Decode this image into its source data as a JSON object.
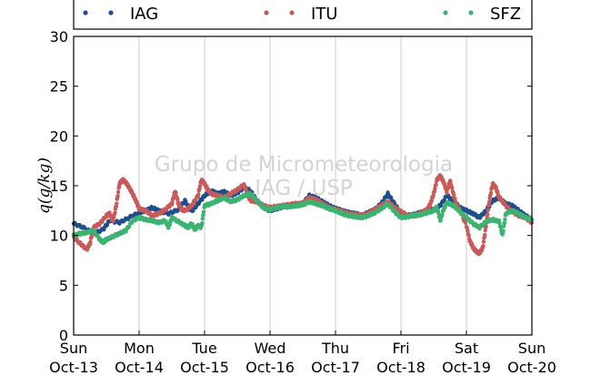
{
  "chart_data": {
    "type": "scatter",
    "title": "",
    "ylabel": "q(g/kg)",
    "xlabel": "",
    "xlim": [
      0,
      7
    ],
    "ylim": [
      0,
      30
    ],
    "yticks": [
      0,
      5,
      10,
      15,
      20,
      25,
      30
    ],
    "grid": "vertical",
    "legend_position": "top",
    "watermark": [
      "Grupo de Micrometeorologia",
      "IAG / USP"
    ],
    "x_ticks": [
      {
        "x": 0,
        "day": "Sun",
        "date": "Oct-13"
      },
      {
        "x": 1,
        "day": "Mon",
        "date": "Oct-14"
      },
      {
        "x": 2,
        "day": "Tue",
        "date": "Oct-15"
      },
      {
        "x": 3,
        "day": "Wed",
        "date": "Oct-16"
      },
      {
        "x": 4,
        "day": "Thu",
        "date": "Oct-17"
      },
      {
        "x": 5,
        "day": "Fri",
        "date": "Oct-18"
      },
      {
        "x": 6,
        "day": "Sat",
        "date": "Oct-19"
      },
      {
        "x": 7,
        "day": "Sun",
        "date": "Oct-20"
      }
    ],
    "series": [
      {
        "name": "IAG",
        "color": "#1f4e8c",
        "points": [
          [
            0,
            11.2
          ],
          [
            0.15,
            10.8
          ],
          [
            0.3,
            10.2
          ],
          [
            0.45,
            10.6
          ],
          [
            0.55,
            11.5
          ],
          [
            0.7,
            11.3
          ],
          [
            0.85,
            11.8
          ],
          [
            1.0,
            12.3
          ],
          [
            1.1,
            12.5
          ],
          [
            1.2,
            12.8
          ],
          [
            1.3,
            12.5
          ],
          [
            1.45,
            12.2
          ],
          [
            1.6,
            12.6
          ],
          [
            1.7,
            13.5
          ],
          [
            1.8,
            12.4
          ],
          [
            1.9,
            13.2
          ],
          [
            2.0,
            14.0
          ],
          [
            2.1,
            14.5
          ],
          [
            2.2,
            14.2
          ],
          [
            2.3,
            14.4
          ],
          [
            2.4,
            14.0
          ],
          [
            2.5,
            14.3
          ],
          [
            2.6,
            14.8
          ],
          [
            2.7,
            14.5
          ],
          [
            2.8,
            13.5
          ],
          [
            2.9,
            12.8
          ],
          [
            3.0,
            12.5
          ],
          [
            3.1,
            12.7
          ],
          [
            3.2,
            12.9
          ],
          [
            3.3,
            13.0
          ],
          [
            3.4,
            13.0
          ],
          [
            3.5,
            13.2
          ],
          [
            3.6,
            14.0
          ],
          [
            3.7,
            13.8
          ],
          [
            3.8,
            13.4
          ],
          [
            3.9,
            13.0
          ],
          [
            4.0,
            12.7
          ],
          [
            4.1,
            12.5
          ],
          [
            4.2,
            12.3
          ],
          [
            4.3,
            12.2
          ],
          [
            4.4,
            12.0
          ],
          [
            4.5,
            12.3
          ],
          [
            4.6,
            12.6
          ],
          [
            4.7,
            13.2
          ],
          [
            4.8,
            14.2
          ],
          [
            4.9,
            13.2
          ],
          [
            5.0,
            12.2
          ],
          [
            5.1,
            12.0
          ],
          [
            5.2,
            12.1
          ],
          [
            5.3,
            12.3
          ],
          [
            5.4,
            12.5
          ],
          [
            5.5,
            12.6
          ],
          [
            5.6,
            13.0
          ],
          [
            5.7,
            14.0
          ],
          [
            5.8,
            13.5
          ],
          [
            5.9,
            12.8
          ],
          [
            6.0,
            12.5
          ],
          [
            6.1,
            12.2
          ],
          [
            6.2,
            11.8
          ],
          [
            6.3,
            12.5
          ],
          [
            6.4,
            13.5
          ],
          [
            6.5,
            13.8
          ],
          [
            6.6,
            13.2
          ],
          [
            6.7,
            13.0
          ],
          [
            6.8,
            12.5
          ],
          [
            6.9,
            12.0
          ],
          [
            7.0,
            11.6
          ]
        ]
      },
      {
        "name": "ITU",
        "color": "#c85a5a",
        "points": [
          [
            0,
            9.8
          ],
          [
            0.1,
            9.2
          ],
          [
            0.2,
            8.6
          ],
          [
            0.25,
            9.2
          ],
          [
            0.3,
            10.8
          ],
          [
            0.4,
            11.2
          ],
          [
            0.5,
            12.0
          ],
          [
            0.55,
            12.2
          ],
          [
            0.6,
            11.4
          ],
          [
            0.65,
            13.0
          ],
          [
            0.7,
            15.2
          ],
          [
            0.75,
            15.6
          ],
          [
            0.8,
            15.3
          ],
          [
            0.85,
            14.8
          ],
          [
            0.9,
            14.2
          ],
          [
            0.95,
            13.5
          ],
          [
            1.0,
            12.7
          ],
          [
            1.1,
            12.5
          ],
          [
            1.2,
            12.0
          ],
          [
            1.3,
            12.2
          ],
          [
            1.4,
            12.6
          ],
          [
            1.5,
            13.2
          ],
          [
            1.55,
            14.5
          ],
          [
            1.6,
            13.2
          ],
          [
            1.65,
            12.6
          ],
          [
            1.7,
            12.5
          ],
          [
            1.8,
            13.0
          ],
          [
            1.9,
            14.0
          ],
          [
            1.95,
            15.6
          ],
          [
            2.0,
            15.2
          ],
          [
            2.05,
            14.6
          ],
          [
            2.1,
            14.2
          ],
          [
            2.2,
            14.0
          ],
          [
            2.3,
            13.8
          ],
          [
            2.4,
            14.2
          ],
          [
            2.5,
            14.6
          ],
          [
            2.6,
            15.1
          ],
          [
            2.65,
            14.2
          ],
          [
            2.7,
            13.5
          ],
          [
            2.8,
            13.4
          ],
          [
            2.9,
            13.0
          ],
          [
            3.0,
            12.8
          ],
          [
            3.1,
            12.9
          ],
          [
            3.2,
            13.0
          ],
          [
            3.3,
            13.1
          ],
          [
            3.4,
            13.2
          ],
          [
            3.5,
            13.2
          ],
          [
            3.6,
            13.8
          ],
          [
            3.7,
            13.6
          ],
          [
            3.8,
            13.2
          ],
          [
            3.9,
            12.8
          ],
          [
            4.0,
            12.6
          ],
          [
            4.1,
            12.4
          ],
          [
            4.2,
            12.2
          ],
          [
            4.3,
            12.1
          ],
          [
            4.4,
            12.0
          ],
          [
            4.5,
            12.2
          ],
          [
            4.6,
            12.6
          ],
          [
            4.7,
            13.0
          ],
          [
            4.8,
            13.4
          ],
          [
            4.9,
            12.8
          ],
          [
            5.0,
            12.4
          ],
          [
            5.1,
            12.0
          ],
          [
            5.2,
            12.0
          ],
          [
            5.3,
            12.2
          ],
          [
            5.4,
            12.6
          ],
          [
            5.45,
            13.2
          ],
          [
            5.5,
            14.2
          ],
          [
            5.55,
            15.6
          ],
          [
            5.6,
            16.0
          ],
          [
            5.65,
            15.4
          ],
          [
            5.7,
            14.4
          ],
          [
            5.75,
            15.5
          ],
          [
            5.8,
            14.2
          ],
          [
            5.85,
            13.0
          ],
          [
            5.9,
            12.5
          ],
          [
            6.0,
            11.0
          ],
          [
            6.05,
            9.5
          ],
          [
            6.1,
            8.8
          ],
          [
            6.15,
            8.4
          ],
          [
            6.2,
            8.2
          ],
          [
            6.25,
            8.8
          ],
          [
            6.3,
            11.0
          ],
          [
            6.35,
            13.5
          ],
          [
            6.4,
            15.2
          ],
          [
            6.45,
            14.8
          ],
          [
            6.5,
            13.8
          ],
          [
            6.6,
            13.0
          ],
          [
            6.7,
            12.4
          ],
          [
            6.8,
            12.0
          ],
          [
            6.9,
            11.8
          ],
          [
            7.0,
            11.3
          ]
        ]
      },
      {
        "name": "SFZ",
        "color": "#3cb371",
        "points": [
          [
            0,
            10.0
          ],
          [
            0.1,
            10.2
          ],
          [
            0.2,
            10.3
          ],
          [
            0.3,
            10.5
          ],
          [
            0.4,
            9.6
          ],
          [
            0.45,
            9.3
          ],
          [
            0.5,
            9.6
          ],
          [
            0.6,
            9.9
          ],
          [
            0.7,
            10.2
          ],
          [
            0.8,
            10.5
          ],
          [
            0.9,
            11.5
          ],
          [
            1.0,
            11.8
          ],
          [
            1.1,
            11.6
          ],
          [
            1.2,
            11.5
          ],
          [
            1.3,
            11.3
          ],
          [
            1.4,
            11.5
          ],
          [
            1.45,
            10.8
          ],
          [
            1.5,
            11.8
          ],
          [
            1.6,
            11.4
          ],
          [
            1.7,
            11.0
          ],
          [
            1.75,
            10.8
          ],
          [
            1.8,
            11.2
          ],
          [
            1.85,
            10.6
          ],
          [
            1.9,
            11.0
          ],
          [
            1.95,
            10.8
          ],
          [
            2.0,
            13.0
          ],
          [
            2.1,
            13.2
          ],
          [
            2.2,
            13.5
          ],
          [
            2.3,
            13.8
          ],
          [
            2.4,
            13.4
          ],
          [
            2.5,
            13.6
          ],
          [
            2.6,
            14.0
          ],
          [
            2.7,
            14.2
          ],
          [
            2.8,
            13.5
          ],
          [
            2.9,
            12.8
          ],
          [
            3.0,
            12.6
          ],
          [
            3.1,
            12.8
          ],
          [
            3.2,
            12.9
          ],
          [
            3.3,
            12.9
          ],
          [
            3.4,
            13.0
          ],
          [
            3.5,
            13.1
          ],
          [
            3.6,
            13.4
          ],
          [
            3.7,
            13.2
          ],
          [
            3.8,
            13.0
          ],
          [
            3.9,
            12.7
          ],
          [
            4.0,
            12.5
          ],
          [
            4.1,
            12.2
          ],
          [
            4.2,
            12.0
          ],
          [
            4.3,
            11.9
          ],
          [
            4.4,
            11.8
          ],
          [
            4.5,
            12.0
          ],
          [
            4.6,
            12.3
          ],
          [
            4.7,
            12.7
          ],
          [
            4.8,
            13.2
          ],
          [
            4.9,
            12.4
          ],
          [
            5.0,
            11.8
          ],
          [
            5.1,
            11.9
          ],
          [
            5.2,
            12.0
          ],
          [
            5.3,
            12.1
          ],
          [
            5.4,
            12.3
          ],
          [
            5.5,
            12.5
          ],
          [
            5.55,
            12.8
          ],
          [
            5.6,
            11.5
          ],
          [
            5.65,
            12.6
          ],
          [
            5.7,
            13.3
          ],
          [
            5.8,
            13.0
          ],
          [
            5.9,
            12.4
          ],
          [
            6.0,
            11.8
          ],
          [
            6.1,
            11.2
          ],
          [
            6.2,
            10.8
          ],
          [
            6.3,
            11.4
          ],
          [
            6.4,
            11.6
          ],
          [
            6.5,
            11.4
          ],
          [
            6.55,
            10.0
          ],
          [
            6.6,
            12.2
          ],
          [
            6.7,
            12.5
          ],
          [
            6.8,
            12.2
          ],
          [
            6.9,
            11.8
          ],
          [
            7.0,
            11.6
          ]
        ]
      }
    ]
  }
}
